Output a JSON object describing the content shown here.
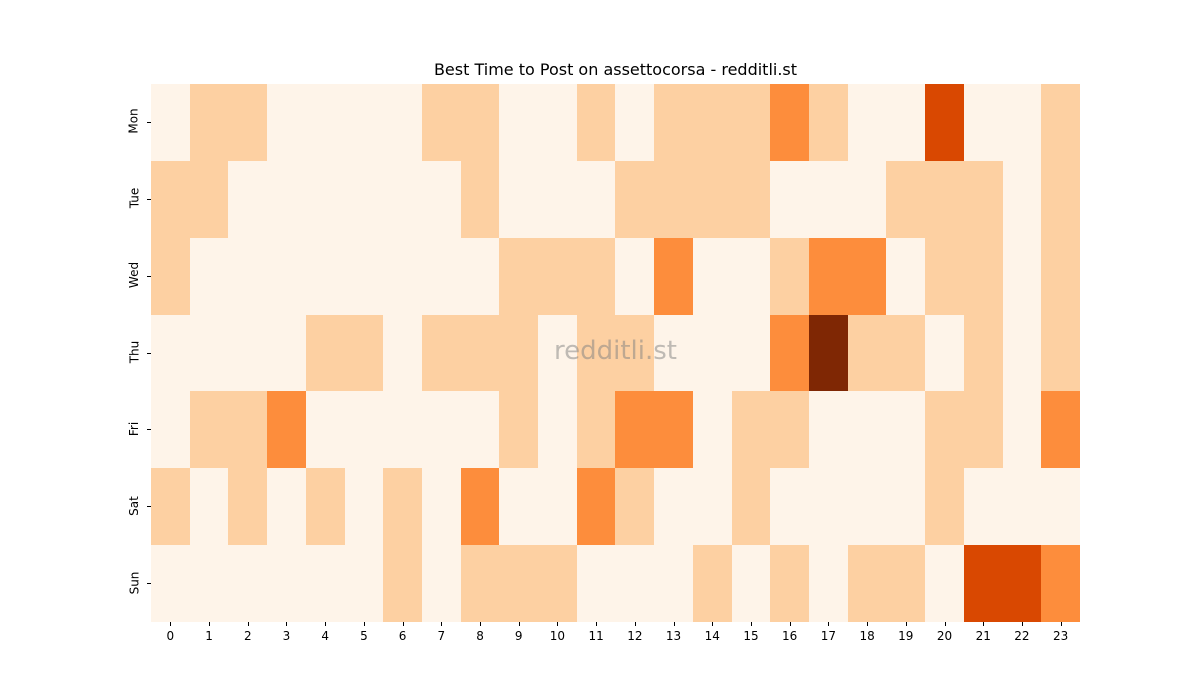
{
  "chart_data": {
    "type": "heatmap",
    "title": "Best Time to Post on assettocorsa - redditli.st",
    "xlabel": "",
    "ylabel": "",
    "watermark": "redditli.st",
    "x": [
      "0",
      "1",
      "2",
      "3",
      "4",
      "5",
      "6",
      "7",
      "8",
      "9",
      "10",
      "11",
      "12",
      "13",
      "14",
      "15",
      "16",
      "17",
      "18",
      "19",
      "20",
      "21",
      "22",
      "23"
    ],
    "y": [
      "Mon",
      "Tue",
      "Wed",
      "Thu",
      "Fri",
      "Sat",
      "Sun"
    ],
    "colormap": "Oranges",
    "levels": {
      "0": "#fef4e9",
      "1": "#fdd0a2",
      "2": "#fd8d3c",
      "3": "#d94801",
      "4": "#7f2704"
    },
    "values": [
      [
        0,
        1,
        1,
        0,
        0,
        0,
        0,
        1,
        1,
        0,
        0,
        1,
        0,
        1,
        1,
        1,
        2,
        1,
        0,
        0,
        3,
        0,
        0,
        1
      ],
      [
        1,
        1,
        0,
        0,
        0,
        0,
        0,
        0,
        1,
        0,
        0,
        0,
        1,
        1,
        1,
        1,
        0,
        0,
        0,
        1,
        1,
        1,
        0,
        1
      ],
      [
        1,
        0,
        0,
        0,
        0,
        0,
        0,
        0,
        0,
        1,
        1,
        1,
        0,
        2,
        0,
        0,
        1,
        2,
        2,
        0,
        1,
        1,
        0,
        1
      ],
      [
        0,
        0,
        0,
        0,
        1,
        1,
        0,
        1,
        1,
        1,
        0,
        1,
        1,
        0,
        0,
        0,
        2,
        4,
        1,
        1,
        0,
        1,
        0,
        1
      ],
      [
        0,
        1,
        1,
        2,
        0,
        0,
        0,
        0,
        0,
        1,
        0,
        1,
        2,
        2,
        0,
        1,
        1,
        0,
        0,
        0,
        1,
        1,
        0,
        2
      ],
      [
        1,
        0,
        1,
        0,
        1,
        0,
        1,
        0,
        2,
        0,
        0,
        2,
        1,
        0,
        0,
        1,
        0,
        0,
        0,
        0,
        1,
        0,
        0,
        0
      ],
      [
        0,
        0,
        0,
        0,
        0,
        0,
        1,
        0,
        1,
        1,
        1,
        0,
        0,
        0,
        1,
        0,
        1,
        0,
        1,
        1,
        0,
        3,
        3,
        2
      ]
    ],
    "legend": "none",
    "grid": false
  }
}
